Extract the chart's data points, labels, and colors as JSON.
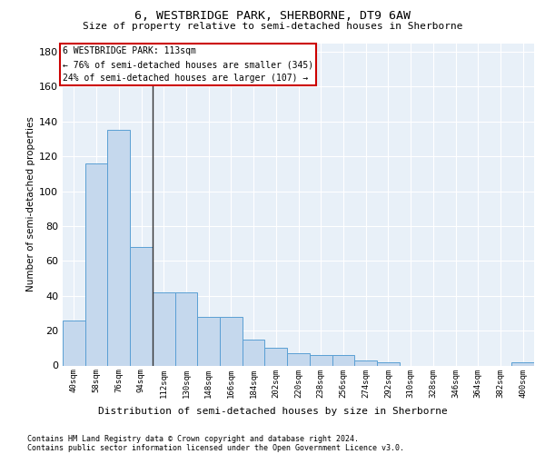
{
  "title": "6, WESTBRIDGE PARK, SHERBORNE, DT9 6AW",
  "subtitle": "Size of property relative to semi-detached houses in Sherborne",
  "xlabel": "Distribution of semi-detached houses by size in Sherborne",
  "ylabel": "Number of semi-detached properties",
  "categories": [
    "40sqm",
    "58sqm",
    "76sqm",
    "94sqm",
    "112sqm",
    "130sqm",
    "148sqm",
    "166sqm",
    "184sqm",
    "202sqm",
    "220sqm",
    "238sqm",
    "256sqm",
    "274sqm",
    "292sqm",
    "310sqm",
    "328sqm",
    "346sqm",
    "364sqm",
    "382sqm",
    "400sqm"
  ],
  "values": [
    26,
    116,
    135,
    68,
    42,
    42,
    28,
    28,
    15,
    10,
    7,
    6,
    6,
    3,
    2,
    0,
    0,
    0,
    0,
    0,
    2
  ],
  "bar_color": "#c5d8ed",
  "bar_edge_color": "#5a9fd4",
  "highlight_index": 4,
  "highlight_line_color": "#333333",
  "annotation_box_color": "#ffffff",
  "annotation_box_edge_color": "#cc0000",
  "annotation_title": "6 WESTBRIDGE PARK: 113sqm",
  "annotation_line1": "← 76% of semi-detached houses are smaller (345)",
  "annotation_line2": "24% of semi-detached houses are larger (107) →",
  "ylim": [
    0,
    185
  ],
  "yticks": [
    0,
    20,
    40,
    60,
    80,
    100,
    120,
    140,
    160,
    180
  ],
  "footer1": "Contains HM Land Registry data © Crown copyright and database right 2024.",
  "footer2": "Contains public sector information licensed under the Open Government Licence v3.0.",
  "bg_color": "#ffffff",
  "plot_bg_color": "#e8f0f8",
  "grid_color": "#ffffff"
}
